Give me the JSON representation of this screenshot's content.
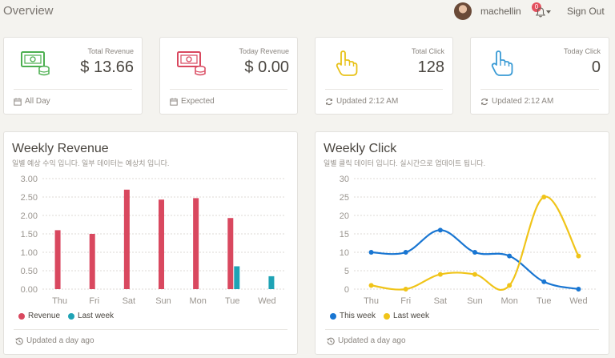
{
  "header": {
    "title": "Overview",
    "username": "machellin",
    "notification_count": "0",
    "signout_label": "Sign Out"
  },
  "stats": [
    {
      "category": "Total Revenue",
      "value": "$ 13.66",
      "footer": "All Day",
      "icon": "money-icon",
      "footer_icon": "calendar-icon",
      "color": "#4caf50"
    },
    {
      "category": "Today Revenue",
      "value": "$ 0.00",
      "footer": "Expected",
      "icon": "money-icon",
      "footer_icon": "calendar-icon",
      "color": "#d9485f"
    },
    {
      "category": "Total Click",
      "value": "128",
      "footer": "Updated 2:12 AM",
      "icon": "hand-pointer-icon",
      "footer_icon": "refresh-icon",
      "color": "#e8c21a"
    },
    {
      "category": "Today Click",
      "value": "0",
      "footer": "Updated 2:12 AM",
      "icon": "hand-pointer-icon",
      "footer_icon": "refresh-icon",
      "color": "#3a9bd5"
    }
  ],
  "revenue_panel": {
    "title": "Weekly Revenue",
    "subtitle": "일별 예상 수익 입니다. 일부 데이터는 예상치 입니다.",
    "footer": "Updated a day ago"
  },
  "click_panel": {
    "title": "Weekly Click",
    "subtitle": "일별 클릭 데이터 입니다. 실시간으로 업데이트 됩니다.",
    "footer": "Updated a day ago"
  },
  "chart_data": [
    {
      "type": "bar",
      "categories": [
        "Thu",
        "Fri",
        "Sat",
        "Sun",
        "Mon",
        "Tue",
        "Wed"
      ],
      "series": [
        {
          "name": "Revenue",
          "color": "#d9485f",
          "values": [
            1.6,
            1.5,
            2.7,
            2.43,
            2.47,
            1.93,
            0
          ]
        },
        {
          "name": "Last week",
          "color": "#1fa3b5",
          "values": [
            0,
            0,
            0,
            0,
            0,
            0.62,
            0.35
          ]
        }
      ],
      "yticks": [
        "0.00",
        "0.50",
        "1.00",
        "1.50",
        "2.00",
        "2.50",
        "3.00"
      ],
      "ylim": [
        0,
        3
      ],
      "grid": true,
      "legend": "bottom-left"
    },
    {
      "type": "line",
      "categories": [
        "Thu",
        "Fri",
        "Sat",
        "Sun",
        "Mon",
        "Tue",
        "Wed"
      ],
      "series": [
        {
          "name": "This week",
          "color": "#1976d2",
          "values": [
            10,
            10,
            16,
            10,
            9,
            2,
            0
          ]
        },
        {
          "name": "Last week",
          "color": "#f0c419",
          "values": [
            1,
            0,
            4,
            4,
            1,
            25,
            9
          ]
        }
      ],
      "yticks": [
        "0",
        "5",
        "10",
        "15",
        "20",
        "25",
        "30"
      ],
      "ylim": [
        0,
        30
      ],
      "grid": true,
      "legend": "bottom-left"
    }
  ]
}
